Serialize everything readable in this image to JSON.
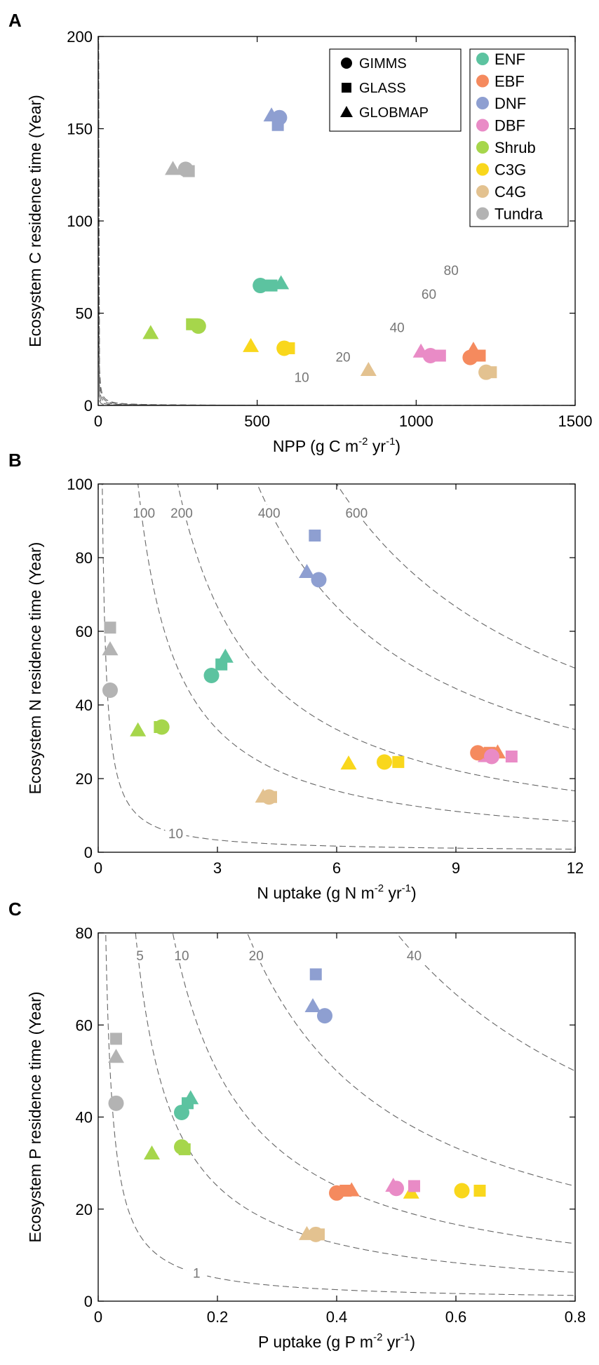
{
  "colors": {
    "ENF": "#5cc3a0",
    "EBF": "#f58a5e",
    "DNF": "#8e9fd1",
    "DBF": "#e98bc6",
    "Shrub": "#a6d64b",
    "C3G": "#f9d71c",
    "C4G": "#e3c290",
    "Tundra": "#b3b3b3",
    "axis": "#000000",
    "contour": "#666666",
    "contour_label": "#777777"
  },
  "legend": {
    "datasets": [
      {
        "name": "GIMMS",
        "marker": "circle"
      },
      {
        "name": "GLASS",
        "marker": "square"
      },
      {
        "name": "GLOBMAP",
        "marker": "triangle"
      }
    ],
    "types": [
      "ENF",
      "EBF",
      "DNF",
      "DBF",
      "Shrub",
      "C3G",
      "C4G",
      "Tundra"
    ]
  },
  "chart_data": [
    {
      "panel": "A",
      "type": "scatter",
      "xlabel": "NPP (g C m",
      "xlabel_sup": "-2",
      "xlabel_mid": " yr",
      "xlabel_sup2": "-1",
      "xlabel_end": ")",
      "ylabel": "Ecosystem C residence time (Year)",
      "xlim": [
        0,
        1500
      ],
      "ylim": [
        0,
        200
      ],
      "xticks": [
        0,
        500,
        1000,
        1500
      ],
      "yticks": [
        0,
        50,
        100,
        150,
        200
      ],
      "contours": [
        {
          "level": 10,
          "label": "10",
          "lx": 640,
          "ly": 15
        },
        {
          "level": 20,
          "label": "20",
          "lx": 770,
          "ly": 26
        },
        {
          "level": 40,
          "label": "40",
          "lx": 940,
          "ly": 42
        },
        {
          "level": 60,
          "label": "60",
          "lx": 1040,
          "ly": 60
        },
        {
          "level": 80,
          "label": "80",
          "lx": 1110,
          "ly": 73
        }
      ],
      "points": [
        {
          "type": "ENF",
          "marker": "circle",
          "x": 510,
          "y": 65
        },
        {
          "type": "ENF",
          "marker": "square",
          "x": 545,
          "y": 65
        },
        {
          "type": "ENF",
          "marker": "triangle",
          "x": 575,
          "y": 66
        },
        {
          "type": "EBF",
          "marker": "circle",
          "x": 1170,
          "y": 26
        },
        {
          "type": "EBF",
          "marker": "square",
          "x": 1200,
          "y": 27
        },
        {
          "type": "EBF",
          "marker": "triangle",
          "x": 1180,
          "y": 30
        },
        {
          "type": "DNF",
          "marker": "circle",
          "x": 570,
          "y": 156
        },
        {
          "type": "DNF",
          "marker": "square",
          "x": 565,
          "y": 152
        },
        {
          "type": "DNF",
          "marker": "triangle",
          "x": 545,
          "y": 157
        },
        {
          "type": "DBF",
          "marker": "circle",
          "x": 1045,
          "y": 27
        },
        {
          "type": "DBF",
          "marker": "square",
          "x": 1075,
          "y": 27
        },
        {
          "type": "DBF",
          "marker": "triangle",
          "x": 1015,
          "y": 29
        },
        {
          "type": "Shrub",
          "marker": "circle",
          "x": 315,
          "y": 43
        },
        {
          "type": "Shrub",
          "marker": "square",
          "x": 295,
          "y": 44
        },
        {
          "type": "Shrub",
          "marker": "triangle",
          "x": 165,
          "y": 39
        },
        {
          "type": "C3G",
          "marker": "circle",
          "x": 585,
          "y": 31
        },
        {
          "type": "C3G",
          "marker": "square",
          "x": 600,
          "y": 31
        },
        {
          "type": "C3G",
          "marker": "triangle",
          "x": 480,
          "y": 32
        },
        {
          "type": "C4G",
          "marker": "circle",
          "x": 1220,
          "y": 18
        },
        {
          "type": "C4G",
          "marker": "square",
          "x": 1235,
          "y": 18
        },
        {
          "type": "C4G",
          "marker": "triangle",
          "x": 850,
          "y": 19
        },
        {
          "type": "Tundra",
          "marker": "circle",
          "x": 275,
          "y": 128
        },
        {
          "type": "Tundra",
          "marker": "square",
          "x": 285,
          "y": 127
        },
        {
          "type": "Tundra",
          "marker": "triangle",
          "x": 235,
          "y": 128
        }
      ]
    },
    {
      "panel": "B",
      "type": "scatter",
      "xlabel": "N uptake (g N m",
      "xlabel_sup": "-2",
      "xlabel_mid": " yr",
      "xlabel_sup2": "-1",
      "xlabel_end": ")",
      "ylabel": "Ecosystem N residence time (Year)",
      "xlim": [
        0,
        12
      ],
      "ylim": [
        0,
        100
      ],
      "xticks": [
        0,
        3,
        6,
        9,
        12
      ],
      "yticks": [
        0,
        20,
        40,
        60,
        80,
        100
      ],
      "contours": [
        {
          "level": 10,
          "label": "10",
          "lx": 1.95,
          "ly": 5
        },
        {
          "level": 100,
          "label": "100",
          "lx": 1.15,
          "ly": 92
        },
        {
          "level": 200,
          "label": "200",
          "lx": 2.1,
          "ly": 92
        },
        {
          "level": 400,
          "label": "400",
          "lx": 4.3,
          "ly": 92
        },
        {
          "level": 600,
          "label": "600",
          "lx": 6.5,
          "ly": 92
        }
      ],
      "points": [
        {
          "type": "ENF",
          "marker": "circle",
          "x": 2.85,
          "y": 48
        },
        {
          "type": "ENF",
          "marker": "square",
          "x": 3.1,
          "y": 51
        },
        {
          "type": "ENF",
          "marker": "triangle",
          "x": 3.2,
          "y": 53
        },
        {
          "type": "EBF",
          "marker": "circle",
          "x": 9.55,
          "y": 27
        },
        {
          "type": "EBF",
          "marker": "square",
          "x": 9.85,
          "y": 27
        },
        {
          "type": "EBF",
          "marker": "triangle",
          "x": 10.05,
          "y": 27
        },
        {
          "type": "DNF",
          "marker": "circle",
          "x": 5.55,
          "y": 74
        },
        {
          "type": "DNF",
          "marker": "square",
          "x": 5.45,
          "y": 86
        },
        {
          "type": "DNF",
          "marker": "triangle",
          "x": 5.25,
          "y": 76
        },
        {
          "type": "DBF",
          "marker": "circle",
          "x": 9.9,
          "y": 26
        },
        {
          "type": "DBF",
          "marker": "square",
          "x": 10.4,
          "y": 26
        },
        {
          "type": "DBF",
          "marker": "triangle",
          "x": 9.75,
          "y": 26
        },
        {
          "type": "Shrub",
          "marker": "circle",
          "x": 1.6,
          "y": 34
        },
        {
          "type": "Shrub",
          "marker": "square",
          "x": 1.55,
          "y": 34
        },
        {
          "type": "Shrub",
          "marker": "triangle",
          "x": 1.0,
          "y": 33
        },
        {
          "type": "C3G",
          "marker": "circle",
          "x": 7.2,
          "y": 24.5
        },
        {
          "type": "C3G",
          "marker": "square",
          "x": 7.55,
          "y": 24.5
        },
        {
          "type": "C3G",
          "marker": "triangle",
          "x": 6.3,
          "y": 24
        },
        {
          "type": "C4G",
          "marker": "circle",
          "x": 4.3,
          "y": 15
        },
        {
          "type": "C4G",
          "marker": "square",
          "x": 4.35,
          "y": 15
        },
        {
          "type": "C4G",
          "marker": "triangle",
          "x": 4.15,
          "y": 15
        },
        {
          "type": "Tundra",
          "marker": "circle",
          "x": 0.3,
          "y": 44
        },
        {
          "type": "Tundra",
          "marker": "square",
          "x": 0.3,
          "y": 61
        },
        {
          "type": "Tundra",
          "marker": "triangle",
          "x": 0.3,
          "y": 55
        }
      ]
    },
    {
      "panel": "C",
      "type": "scatter",
      "xlabel": "P  uptake (g P m",
      "xlabel_sup": "-2",
      "xlabel_mid": " yr",
      "xlabel_sup2": "-1",
      "xlabel_end": ")",
      "ylabel": "Ecosystem P residence time (Year)",
      "xlim": [
        0,
        0.8
      ],
      "ylim": [
        0,
        80
      ],
      "xticks": [
        0,
        0.2,
        0.4,
        0.6,
        0.8
      ],
      "ytick_labels_note": "",
      "yticks": [
        0,
        20,
        40,
        60,
        80
      ],
      "contours": [
        {
          "level": 1,
          "label": "1",
          "lx": 0.165,
          "ly": 6
        },
        {
          "level": 5,
          "label": "5",
          "lx": 0.07,
          "ly": 75
        },
        {
          "level": 10,
          "label": "10",
          "lx": 0.14,
          "ly": 75
        },
        {
          "level": 20,
          "label": "20",
          "lx": 0.265,
          "ly": 75
        },
        {
          "level": 40,
          "label": "40",
          "lx": 0.53,
          "ly": 75
        }
      ],
      "points": [
        {
          "type": "ENF",
          "marker": "circle",
          "x": 0.14,
          "y": 41
        },
        {
          "type": "ENF",
          "marker": "square",
          "x": 0.15,
          "y": 43
        },
        {
          "type": "ENF",
          "marker": "triangle",
          "x": 0.155,
          "y": 44
        },
        {
          "type": "EBF",
          "marker": "circle",
          "x": 0.4,
          "y": 23.5
        },
        {
          "type": "EBF",
          "marker": "square",
          "x": 0.415,
          "y": 24
        },
        {
          "type": "EBF",
          "marker": "triangle",
          "x": 0.425,
          "y": 24
        },
        {
          "type": "DNF",
          "marker": "circle",
          "x": 0.38,
          "y": 62
        },
        {
          "type": "DNF",
          "marker": "square",
          "x": 0.365,
          "y": 71
        },
        {
          "type": "DNF",
          "marker": "triangle",
          "x": 0.36,
          "y": 64
        },
        {
          "type": "DBF",
          "marker": "circle",
          "x": 0.5,
          "y": 24.5
        },
        {
          "type": "DBF",
          "marker": "square",
          "x": 0.53,
          "y": 25
        },
        {
          "type": "DBF",
          "marker": "triangle",
          "x": 0.495,
          "y": 25
        },
        {
          "type": "Shrub",
          "marker": "circle",
          "x": 0.14,
          "y": 33.5
        },
        {
          "type": "Shrub",
          "marker": "square",
          "x": 0.145,
          "y": 33
        },
        {
          "type": "Shrub",
          "marker": "triangle",
          "x": 0.09,
          "y": 32
        },
        {
          "type": "C3G",
          "marker": "circle",
          "x": 0.61,
          "y": 24
        },
        {
          "type": "C3G",
          "marker": "square",
          "x": 0.64,
          "y": 24
        },
        {
          "type": "C3G",
          "marker": "triangle",
          "x": 0.525,
          "y": 23.5
        },
        {
          "type": "C4G",
          "marker": "circle",
          "x": 0.365,
          "y": 14.5
        },
        {
          "type": "C4G",
          "marker": "square",
          "x": 0.37,
          "y": 14.5
        },
        {
          "type": "C4G",
          "marker": "triangle",
          "x": 0.35,
          "y": 14.5
        },
        {
          "type": "Tundra",
          "marker": "circle",
          "x": 0.03,
          "y": 43
        },
        {
          "type": "Tundra",
          "marker": "square",
          "x": 0.03,
          "y": 57
        },
        {
          "type": "Tundra",
          "marker": "triangle",
          "x": 0.03,
          "y": 53
        }
      ]
    }
  ]
}
